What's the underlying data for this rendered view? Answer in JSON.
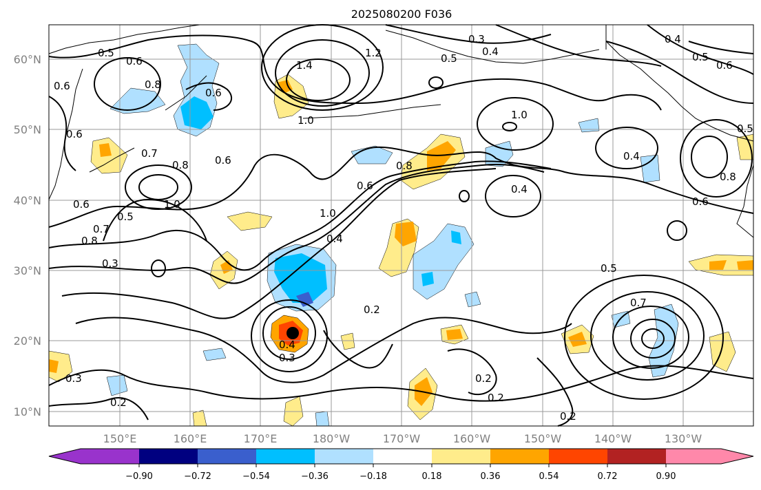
{
  "title": "2025080200 F036",
  "lat_labels": [
    "60°N",
    "50°N",
    "40°N",
    "30°N",
    "20°N",
    "10°N"
  ],
  "lon_labels": [
    "150°E",
    "160°E",
    "170°E",
    "180°W",
    "170°W",
    "160°W",
    "150°W",
    "140°W",
    "130°W"
  ],
  "colorbar": {
    "ticks": [
      "−0.90",
      "−0.72",
      "−0.54",
      "−0.36",
      "−0.18",
      "0.18",
      "0.36",
      "0.54",
      "0.72",
      "0.90"
    ],
    "colors": [
      "#9933cc",
      "#000080",
      "#3a5fcd",
      "#00bfff",
      "#b0e0ff",
      "#ffffff",
      "#ffec8b",
      "#ffa500",
      "#ff4500",
      "#b22222",
      "#ff88aa"
    ]
  },
  "contour_labels": [
    {
      "text": "0.5"
    },
    {
      "text": "0.6"
    },
    {
      "text": "0.6"
    },
    {
      "text": "0.8"
    },
    {
      "text": "0.6"
    },
    {
      "text": "0.6"
    },
    {
      "text": "0.7"
    },
    {
      "text": "0.8"
    },
    {
      "text": "0.6"
    },
    {
      "text": "1.0"
    },
    {
      "text": "0.6"
    },
    {
      "text": "0.5"
    },
    {
      "text": "0.8"
    },
    {
      "text": "0.7"
    },
    {
      "text": "0.3"
    },
    {
      "text": "1.4"
    },
    {
      "text": "1.2"
    },
    {
      "text": "1.0"
    },
    {
      "text": "0.8"
    },
    {
      "text": "0.6"
    },
    {
      "text": "1.0"
    },
    {
      "text": "0.4"
    },
    {
      "text": "0.2"
    },
    {
      "text": "0.4"
    },
    {
      "text": "0.3"
    },
    {
      "text": "1.0"
    },
    {
      "text": "0.4"
    },
    {
      "text": "0.4"
    },
    {
      "text": "0.3"
    },
    {
      "text": "0.4"
    },
    {
      "text": "0.5"
    },
    {
      "text": "0.6"
    },
    {
      "text": "0.5"
    },
    {
      "text": "0.4"
    },
    {
      "text": "0.8"
    },
    {
      "text": "0.6"
    },
    {
      "text": "0.5"
    },
    {
      "text": "0.7"
    },
    {
      "text": "0.2"
    },
    {
      "text": "0.2"
    },
    {
      "text": "0.2"
    },
    {
      "text": "0.3"
    },
    {
      "text": "0.2"
    },
    {
      "text": "0.5"
    }
  ]
}
